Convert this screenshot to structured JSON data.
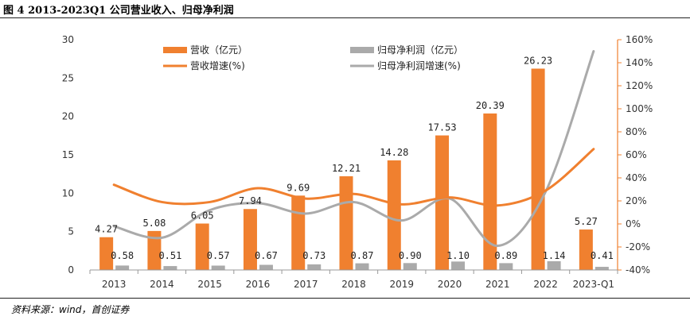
{
  "title": "图 4 2013-2023Q1 公司营业收入、归母净利润",
  "source": "资料来源：wind，首创证券",
  "colors": {
    "revenue": "#F0802F",
    "profit": "#AAAAAA",
    "axis": "#F0802F",
    "text": "#333333"
  },
  "chart_data": {
    "type": "bar",
    "categories": [
      "2013",
      "2014",
      "2015",
      "2016",
      "2017",
      "2018",
      "2019",
      "2020",
      "2021",
      "2022",
      "2023-Q1"
    ],
    "series": [
      {
        "name": "营收（亿元）",
        "type": "bar",
        "axis": "left",
        "values": [
          4.27,
          5.08,
          6.05,
          7.94,
          9.69,
          12.21,
          14.28,
          17.53,
          20.39,
          26.23,
          5.27
        ],
        "labels": [
          "4.27",
          "5.08",
          "6.05",
          "7.94",
          "9.69",
          "12.21",
          "14.28",
          "17.53",
          "20.39",
          "26.23",
          "5.27"
        ]
      },
      {
        "name": "归母净利润（亿元）",
        "type": "bar",
        "axis": "left",
        "values": [
          0.58,
          0.51,
          0.57,
          0.67,
          0.73,
          0.87,
          0.9,
          1.1,
          0.89,
          1.14,
          0.41
        ],
        "labels": [
          "0.58",
          "0.51",
          "0.57",
          "0.67",
          "0.73",
          "0.87",
          "0.90",
          "1.10",
          "0.89",
          "1.14",
          "0.41"
        ]
      },
      {
        "name": "营收增速(%)",
        "type": "line",
        "axis": "right",
        "values": [
          34,
          19,
          19,
          31,
          22,
          26,
          17,
          23,
          16,
          29,
          65
        ]
      },
      {
        "name": "归母净利润增速(%)",
        "type": "line",
        "axis": "right",
        "values": [
          -2,
          -12,
          12,
          18,
          9,
          19,
          3,
          22,
          -19,
          28,
          150
        ]
      }
    ],
    "ylim": [
      0,
      30
    ],
    "yticks": [
      "0",
      "5",
      "10",
      "15",
      "20",
      "25",
      "30"
    ],
    "y2lim": [
      -40,
      160
    ],
    "y2ticks": [
      "-40%",
      "-20%",
      "0%",
      "20%",
      "40%",
      "60%",
      "80%",
      "100%",
      "120%",
      "140%",
      "160%"
    ],
    "legend": "top-left",
    "grid": false
  }
}
